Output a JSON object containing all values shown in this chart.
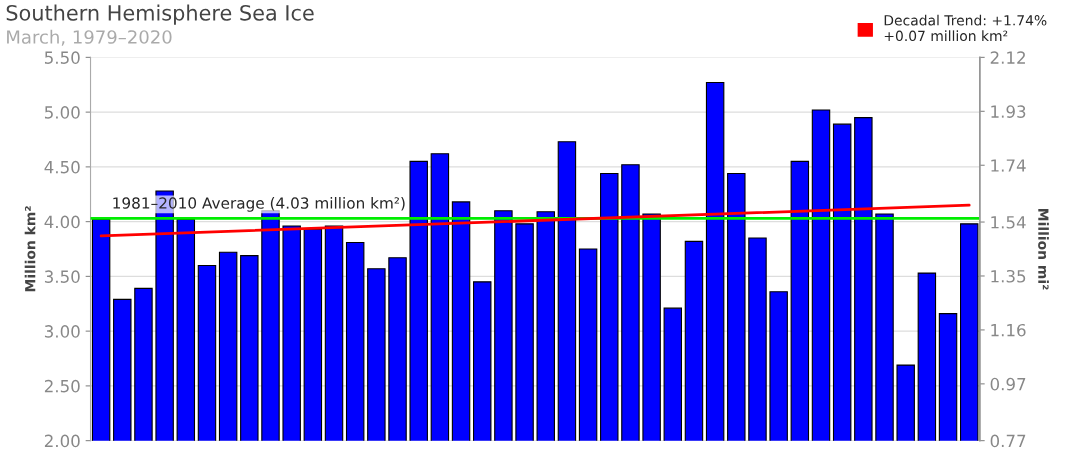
{
  "chart_data": {
    "type": "bar",
    "title": "Southern Hemisphere Sea Ice",
    "subtitle": "March, 1979–2020",
    "ylabel": "Million km²",
    "y2label": "Million mi²",
    "categories": [
      null,
      null,
      null,
      null,
      null,
      null,
      null,
      null,
      null,
      null,
      null,
      null,
      null,
      null,
      null,
      null,
      null,
      null,
      null,
      null,
      null,
      null,
      null,
      null,
      null,
      null,
      null,
      null,
      null,
      null,
      null,
      null,
      null,
      null,
      null,
      null,
      null,
      null,
      null,
      null,
      null,
      null
    ],
    "series": [
      {
        "color": "#0000ff",
        "values": [
          4.02,
          3.29,
          3.39,
          4.28,
          4.02,
          3.6,
          3.72,
          3.69,
          4.1,
          3.96,
          3.93,
          3.96,
          3.81,
          3.57,
          3.67,
          4.55,
          4.62,
          4.18,
          3.45,
          4.1,
          3.98,
          4.09,
          4.73,
          3.75,
          4.44,
          4.52,
          4.07,
          3.21,
          3.82,
          5.27,
          4.44,
          3.85,
          3.36,
          4.55,
          5.02,
          4.89,
          4.95,
          4.07,
          2.69,
          3.53,
          3.16,
          3.98
        ]
      },
      {
        "type": "line",
        "name": "Decadal Trend: +1.74%\n+0.07 million km²",
        "color": "#ff0000",
        "values": [
          3.87,
          null,
          null,
          null,
          null,
          null,
          null,
          null,
          null,
          null,
          null,
          null,
          null,
          null,
          null,
          null,
          null,
          null,
          null,
          null,
          null,
          null,
          null,
          null,
          null,
          null,
          null,
          null,
          null,
          null,
          null,
          null,
          null,
          null,
          null,
          null,
          null,
          null,
          null,
          null,
          null,
          4.15
        ]
      }
    ],
    "ylim": [
      2.0,
      5.5
    ],
    "yticks": [
      {
        "value": 2.0,
        "label": "2.00"
      },
      {
        "value": 2.5,
        "label": "2.50"
      },
      {
        "value": 3.0,
        "label": "3.00"
      },
      {
        "value": 3.5,
        "label": "3.50"
      },
      {
        "value": 4.0,
        "label": "4.00"
      },
      {
        "value": 4.5,
        "label": "4.50"
      },
      {
        "value": 5.0,
        "label": "5.00"
      },
      {
        "value": 5.5,
        "label": "5.50"
      }
    ],
    "y2lim": [
      0.77,
      2.12
    ],
    "y2ticks": [
      0.77,
      0.97,
      1.16,
      1.35,
      1.54,
      1.74,
      1.93,
      2.12
    ],
    "ref_lines": [
      {
        "axis": "y",
        "value": 4.03,
        "label": "1981–2010 Average (4.03 million km²)",
        "color": "#00ee00"
      }
    ],
    "grid": "y",
    "legend": "top right"
  }
}
